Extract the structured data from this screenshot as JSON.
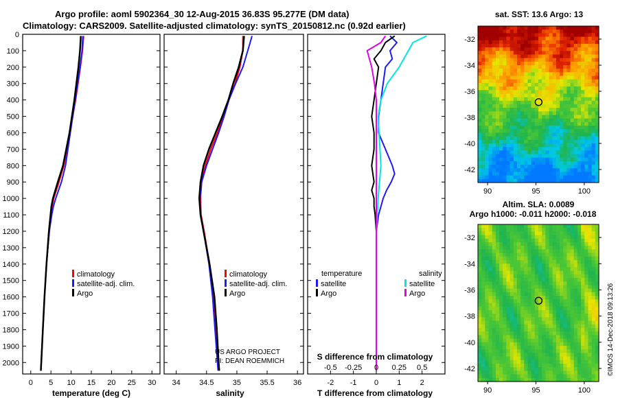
{
  "header": {
    "line1": "Argo profile: aoml 5902364_30 12-Aug-2015 36.83S 95.277E (DM data)",
    "line2": "Climatology: CARS2009. Satellite-adjusted climatology: synTS_20150812.nc (0.92d earlier)"
  },
  "colors": {
    "climatology": "#ff0000",
    "satellite": "#1a1aff",
    "argo": "#000000",
    "satellite_salinity": "#00e5e5",
    "argo_salinity": "#e600e6"
  },
  "chart_data": [
    {
      "id": "temperature",
      "type": "line",
      "xlabel": "temperature (deg C)",
      "ylabel": "",
      "xlim": [
        -2,
        32
      ],
      "ylim": [
        2070,
        0
      ],
      "xticks": [
        "0",
        "5",
        "10",
        "15",
        "20",
        "25",
        "30"
      ],
      "yticks": [
        "0",
        "100",
        "200",
        "300",
        "400",
        "500",
        "600",
        "700",
        "800",
        "900",
        "1000",
        "1100",
        "1200",
        "1300",
        "1400",
        "1500",
        "1600",
        "1700",
        "1800",
        "1900",
        "2000"
      ],
      "legend": [
        "climatology",
        "satellite-adj. clim.",
        "Argo"
      ],
      "series": [
        {
          "name": "climatology",
          "depth": [
            10,
            100,
            200,
            400,
            600,
            800,
            900,
            1000,
            1050,
            1100,
            1200,
            1400,
            1600,
            1800,
            2000,
            2050
          ],
          "values": [
            13.1,
            12.8,
            12.3,
            11.1,
            9.7,
            8.2,
            7.0,
            5.7,
            5.3,
            5.0,
            4.6,
            3.9,
            3.4,
            3.0,
            2.6,
            2.5
          ]
        },
        {
          "name": "satellite-adj. clim.",
          "depth": [
            10,
            100,
            200,
            400,
            600,
            800,
            900,
            1000,
            1050,
            1100,
            1200,
            1400,
            1600,
            1800,
            2000,
            2050
          ],
          "values": [
            12.9,
            12.7,
            12.2,
            11.0,
            9.8,
            8.6,
            7.6,
            6.2,
            5.6,
            5.2,
            4.6,
            3.9,
            3.4,
            3.0,
            2.6,
            2.5
          ]
        },
        {
          "name": "Argo",
          "depth": [
            10,
            100,
            200,
            400,
            600,
            800,
            900,
            1000,
            1050,
            1100,
            1200,
            1400,
            1600,
            1800,
            2000,
            2050
          ],
          "values": [
            12.4,
            12.2,
            11.8,
            10.8,
            9.6,
            8.0,
            6.7,
            5.5,
            5.1,
            4.9,
            4.5,
            3.9,
            3.4,
            3.0,
            2.6,
            2.5
          ]
        }
      ]
    },
    {
      "id": "salinity",
      "type": "line",
      "xlabel": "salinity",
      "ylabel": "",
      "xlim": [
        33.8,
        36.1
      ],
      "ylim": [
        2070,
        0
      ],
      "xticks": [
        "34",
        "34.5",
        "35",
        "35.5",
        "36"
      ],
      "legend": [
        "climatology",
        "satellite-adj. clim.",
        "Argo"
      ],
      "series": [
        {
          "name": "climatology",
          "depth": [
            10,
            100,
            200,
            300,
            400,
            500,
            600,
            700,
            800,
            900,
            1000,
            1100,
            1200,
            1400,
            1600,
            1800,
            2000,
            2050
          ],
          "values": [
            35.1,
            35.1,
            35.05,
            34.97,
            34.87,
            34.78,
            34.68,
            34.57,
            34.48,
            34.42,
            34.4,
            34.41,
            34.46,
            34.55,
            34.62,
            34.66,
            34.7,
            34.71
          ]
        },
        {
          "name": "satellite-adj. clim.",
          "depth": [
            10,
            50,
            100,
            200,
            300,
            400,
            500,
            600,
            700,
            800,
            900,
            1000,
            1100,
            1200,
            1400,
            1600,
            1800,
            2000,
            2050
          ],
          "values": [
            35.25,
            35.22,
            35.18,
            35.1,
            34.98,
            34.87,
            34.79,
            34.7,
            34.6,
            34.5,
            34.42,
            34.39,
            34.4,
            34.45,
            34.54,
            34.6,
            34.64,
            34.68,
            34.69
          ]
        },
        {
          "name": "Argo",
          "depth": [
            10,
            100,
            200,
            300,
            400,
            500,
            600,
            700,
            800,
            900,
            1000,
            1100,
            1200,
            1400,
            1600,
            1800,
            2000,
            2050
          ],
          "values": [
            35.12,
            35.1,
            35.03,
            34.94,
            34.86,
            34.76,
            34.65,
            34.54,
            34.45,
            34.4,
            34.38,
            34.4,
            34.45,
            34.55,
            34.63,
            34.67,
            34.7,
            34.71
          ]
        }
      ]
    },
    {
      "id": "difference",
      "type": "line",
      "xlabel": "T difference from climatology",
      "xlabel2": "S difference from climatology",
      "xlim": [
        -3,
        3
      ],
      "ylim": [
        2070,
        0
      ],
      "xticks": [
        "-2",
        "-1",
        "0",
        "1",
        "2"
      ],
      "xticks_s": [
        "-0.5",
        "-0.25",
        "0",
        "0.25",
        "0.5"
      ],
      "legend_titles": [
        "temperature",
        "salinity"
      ],
      "legend_left": [
        "satellite",
        "Argo"
      ],
      "legend_right": [
        "satellite",
        "Argo"
      ],
      "series": [
        {
          "name": "temperature satellite",
          "depth": [
            10,
            50,
            100,
            150,
            200,
            300,
            400,
            500,
            600,
            700,
            800,
            850,
            900,
            950,
            1000,
            1050,
            1100,
            1200,
            1400,
            1600,
            1800,
            2000,
            2050
          ],
          "values": [
            0.6,
            0.9,
            0.6,
            0.7,
            0.4,
            0.3,
            0.2,
            0.1,
            0.1,
            0.4,
            0.7,
            0.8,
            0.65,
            0.45,
            0.3,
            0.2,
            0.1,
            0.0,
            0.0,
            0.0,
            0.0,
            0.0,
            0.0
          ]
        },
        {
          "name": "temperature Argo",
          "depth": [
            10,
            50,
            100,
            150,
            200,
            300,
            400,
            500,
            600,
            700,
            800,
            850,
            900,
            950,
            1000,
            1050,
            1100,
            1200,
            1400,
            1600,
            1800,
            2000,
            2050
          ],
          "values": [
            0.8,
            0.4,
            0.2,
            -0.1,
            0.1,
            0.0,
            -0.1,
            -0.2,
            -0.1,
            -0.1,
            -0.2,
            -0.15,
            -0.1,
            -0.2,
            -0.1,
            -0.1,
            -0.05,
            0.0,
            0.0,
            0.0,
            0.0,
            0.0,
            0.0
          ]
        },
        {
          "name": "salinity satellite",
          "depth": [
            10,
            50,
            100,
            200,
            300,
            400,
            500,
            600,
            800,
            1000,
            1200,
            1400,
            1600,
            1800,
            2000,
            2050
          ],
          "values": [
            0.55,
            0.4,
            0.35,
            0.25,
            0.12,
            0.05,
            0.02,
            0.03,
            0.05,
            0.02,
            0.0,
            0.0,
            0.0,
            0.0,
            0.0,
            0.0
          ]
        },
        {
          "name": "salinity Argo",
          "depth": [
            10,
            50,
            100,
            200,
            300,
            400,
            600,
            800,
            1000,
            1200,
            1400,
            1600,
            1800,
            2000,
            2050
          ],
          "values": [
            0.1,
            0.05,
            -0.1,
            -0.05,
            -0.02,
            0.0,
            0.0,
            0.0,
            0.0,
            0.0,
            0.0,
            0.0,
            0.0,
            0.0,
            0.0
          ]
        }
      ]
    },
    {
      "id": "sst_map",
      "type": "heatmap",
      "title": "sat. SST: 13.6 Argo: 13",
      "xlim": [
        89,
        101.5
      ],
      "ylim": [
        -43,
        -31
      ],
      "xticks": [
        "90",
        "95",
        "100"
      ],
      "yticks": [
        "-32",
        "-34",
        "-36",
        "-38",
        "-40",
        "-42"
      ],
      "marker": {
        "lon": 95.277,
        "lat": -36.83
      }
    },
    {
      "id": "sla_map",
      "type": "heatmap",
      "title": "Altim. SLA: 0.0089",
      "subtitle": "Argo h1000: -0.011 h2000: -0.018",
      "xlim": [
        89,
        101.5
      ],
      "ylim": [
        -43,
        -31
      ],
      "xticks": [
        "90",
        "95",
        "100"
      ],
      "yticks": [
        "-32",
        "-34",
        "-36",
        "-38",
        "-40",
        "-42"
      ],
      "marker": {
        "lon": 95.277,
        "lat": -36.83
      }
    }
  ],
  "notes": {
    "project": "US ARGO PROJECT",
    "pi": "PI: DEAN ROEMMICH",
    "credit": "©IMOS 14-Dec-2018 09:13:26"
  }
}
